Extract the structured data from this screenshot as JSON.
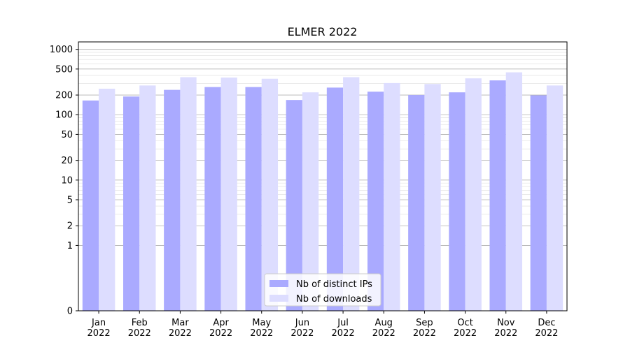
{
  "chart_data": {
    "type": "bar",
    "title": "ELMER 2022",
    "xlabel": "",
    "ylabel": "",
    "yscale": "symlog",
    "ylim": [
      0,
      1300
    ],
    "y_ticks": [
      {
        "value": 0,
        "label": "0"
      },
      {
        "value": 1,
        "label": "1"
      },
      {
        "value": 2,
        "label": "2"
      },
      {
        "value": 5,
        "label": "5"
      },
      {
        "value": 10,
        "label": "10"
      },
      {
        "value": 20,
        "label": "20"
      },
      {
        "value": 50,
        "label": "50"
      },
      {
        "value": 100,
        "label": "100"
      },
      {
        "value": 200,
        "label": "200"
      },
      {
        "value": 500,
        "label": "500"
      },
      {
        "value": 1000,
        "label": "1000"
      }
    ],
    "categories": [
      [
        "Jan",
        "2022"
      ],
      [
        "Feb",
        "2022"
      ],
      [
        "Mar",
        "2022"
      ],
      [
        "Apr",
        "2022"
      ],
      [
        "May",
        "2022"
      ],
      [
        "Jun",
        "2022"
      ],
      [
        "Jul",
        "2022"
      ],
      [
        "Aug",
        "2022"
      ],
      [
        "Sep",
        "2022"
      ],
      [
        "Oct",
        "2022"
      ],
      [
        "Nov",
        "2022"
      ],
      [
        "Dec",
        "2022"
      ]
    ],
    "series": [
      {
        "name": "Nb of distinct IPs",
        "color": "#aaaaff",
        "values": [
          165,
          190,
          240,
          265,
          265,
          168,
          260,
          225,
          200,
          220,
          335,
          198
        ]
      },
      {
        "name": "Nb of downloads",
        "color": "#ddddff",
        "values": [
          250,
          280,
          375,
          370,
          355,
          220,
          375,
          305,
          295,
          360,
          445,
          280
        ]
      }
    ],
    "grid": true,
    "legend_position": "bottom-center"
  }
}
